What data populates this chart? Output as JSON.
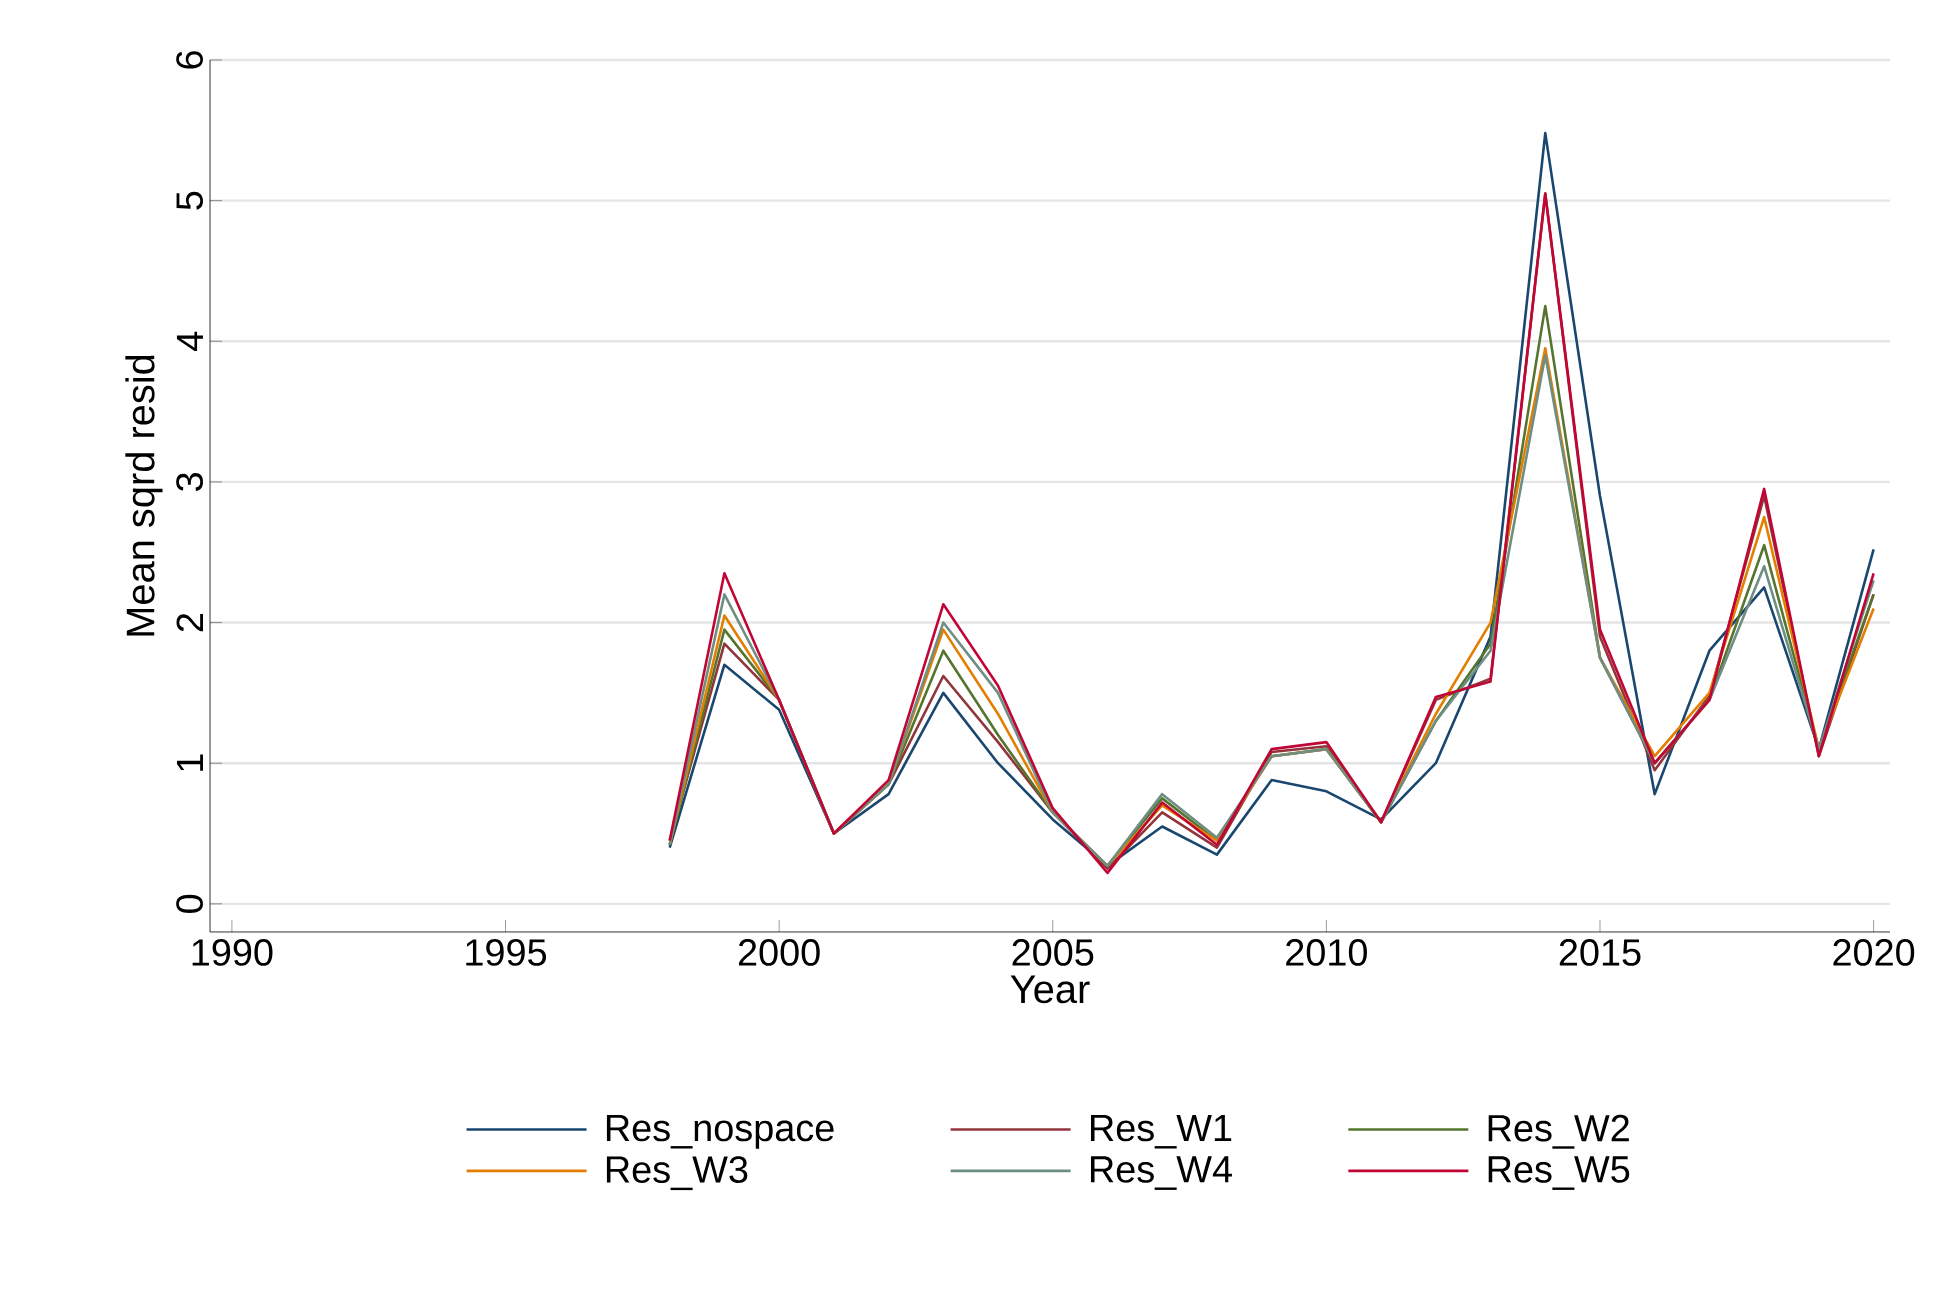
{
  "chart_data": {
    "type": "line",
    "xlabel": "Year",
    "ylabel": "Mean sqrd resid",
    "x": [
      1998,
      1999,
      2000,
      2001,
      2002,
      2003,
      2004,
      2005,
      2006,
      2007,
      2008,
      2009,
      2010,
      2011,
      2012,
      2013,
      2014,
      2015,
      2016,
      2017,
      2018,
      2019,
      2020
    ],
    "series": [
      {
        "name": "Res_nospace",
        "color": "#1a476f",
        "values": [
          0.4,
          1.7,
          1.38,
          0.5,
          0.78,
          1.5,
          1.0,
          0.6,
          0.27,
          0.55,
          0.35,
          0.88,
          0.8,
          0.6,
          1.0,
          1.9,
          5.48,
          2.9,
          0.78,
          1.8,
          2.25,
          1.1,
          2.52
        ]
      },
      {
        "name": "Res_W1",
        "color": "#90353b",
        "values": [
          0.45,
          1.85,
          1.45,
          0.5,
          0.85,
          1.62,
          1.15,
          0.65,
          0.25,
          0.65,
          0.4,
          1.08,
          1.12,
          0.58,
          1.45,
          1.6,
          5.05,
          1.9,
          0.95,
          1.48,
          2.9,
          1.05,
          2.2
        ]
      },
      {
        "name": "Res_W2",
        "color": "#55752f",
        "values": [
          0.42,
          1.95,
          1.45,
          0.5,
          0.85,
          1.8,
          1.2,
          0.65,
          0.27,
          0.75,
          0.45,
          1.05,
          1.1,
          0.58,
          1.3,
          1.85,
          4.25,
          1.75,
          1.0,
          1.45,
          2.55,
          1.1,
          2.2
        ]
      },
      {
        "name": "Res_W3",
        "color": "#e37e00",
        "values": [
          0.42,
          2.05,
          1.45,
          0.5,
          0.85,
          1.95,
          1.35,
          0.65,
          0.27,
          0.7,
          0.45,
          1.05,
          1.1,
          0.58,
          1.35,
          2.0,
          3.95,
          1.75,
          1.05,
          1.5,
          2.75,
          1.1,
          2.1
        ]
      },
      {
        "name": "Res_W4",
        "color": "#6e8e84",
        "values": [
          0.42,
          2.2,
          1.45,
          0.5,
          0.85,
          2.0,
          1.5,
          0.65,
          0.27,
          0.78,
          0.47,
          1.05,
          1.1,
          0.58,
          1.3,
          1.8,
          3.9,
          1.75,
          1.0,
          1.45,
          2.4,
          1.1,
          2.3
        ]
      },
      {
        "name": "Res_W5",
        "color": "#c10534",
        "values": [
          0.45,
          2.35,
          1.45,
          0.5,
          0.88,
          2.13,
          1.55,
          0.68,
          0.22,
          0.72,
          0.42,
          1.1,
          1.15,
          0.58,
          1.47,
          1.58,
          5.05,
          1.95,
          1.0,
          1.45,
          2.95,
          1.05,
          2.35
        ]
      }
    ],
    "xlim": [
      1989.6,
      2020.3
    ],
    "xticks": [
      1990,
      1995,
      2000,
      2005,
      2010,
      2015,
      2020
    ],
    "ylim": [
      -0.2,
      6
    ],
    "yticks": [
      0,
      1,
      2,
      3,
      4,
      5,
      6
    ],
    "grid": "y",
    "legend": "bottom",
    "line_style": "solid",
    "marker": "none"
  }
}
